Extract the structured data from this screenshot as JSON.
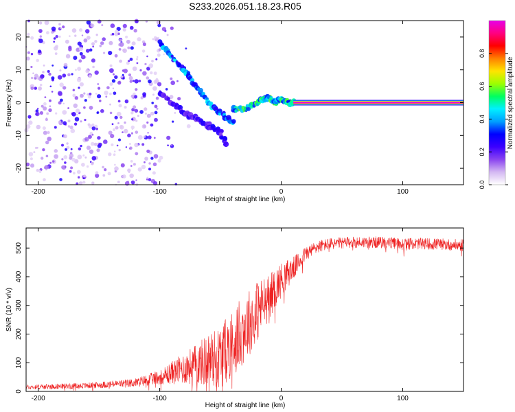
{
  "title": "S233.2026.051.18.23.R05",
  "chart_data": [
    {
      "type": "heatmap",
      "name": "spectrogram",
      "xlabel": "Height of straight line (km)",
      "ylabel": "Frequency (Hz)",
      "xlim": [
        -210,
        150
      ],
      "ylim": [
        -25,
        25
      ],
      "x_ticks": [
        -200,
        -100,
        0,
        100
      ],
      "y_ticks": [
        -20,
        -10,
        0,
        10,
        20
      ],
      "carrier": {
        "frequency_hz": 0,
        "x_from": 10,
        "x_to": 150,
        "amplitude": 1.0
      },
      "noise_region": {
        "x_from": -210,
        "x_to": -100,
        "amplitude_range": [
          0.05,
          0.3
        ]
      },
      "ridges": [
        {
          "name": "upper-branch",
          "points": [
            [
              -100,
              18
            ],
            [
              -90,
              14
            ],
            [
              -80,
              10
            ],
            [
              -70,
              5
            ],
            [
              -60,
              0
            ],
            [
              -50,
              -3
            ],
            [
              -40,
              -6
            ]
          ],
          "amplitude": 0.4
        },
        {
          "name": "lower-branch",
          "points": [
            [
              -100,
              3
            ],
            [
              -90,
              0
            ],
            [
              -80,
              -3
            ],
            [
              -70,
              -5
            ],
            [
              -60,
              -7
            ],
            [
              -50,
              -9
            ],
            [
              -45,
              -13
            ]
          ],
          "amplitude": 0.25
        },
        {
          "name": "convergence",
          "points": [
            [
              -40,
              -2
            ],
            [
              -30,
              -2
            ],
            [
              -20,
              0
            ],
            [
              -15,
              1
            ],
            [
              -10,
              1.5
            ],
            [
              -5,
              0
            ],
            [
              0,
              1
            ],
            [
              5,
              0
            ],
            [
              10,
              0
            ]
          ],
          "amplitude": 0.5
        }
      ]
    },
    {
      "type": "colorbar",
      "name": "amplitude-colorbar",
      "label": "Normalized spectral amplitude",
      "range": [
        0,
        1
      ],
      "ticks": [
        "0.0",
        "0.2",
        "0.4",
        "0.6",
        "0.8"
      ],
      "colors": [
        "#ffffff",
        "#d4b8f2",
        "#8a44f0",
        "#3b00ff",
        "#0000ff",
        "#00a0ff",
        "#00f0ff",
        "#00ff60",
        "#9cff00",
        "#ffe400",
        "#ff8000",
        "#ff0000",
        "#ff0080",
        "#e800e8"
      ]
    },
    {
      "type": "line",
      "name": "snr",
      "xlabel": "Height of straight line (km)",
      "ylabel": "SNR (10 * v/v)",
      "xlim": [
        -210,
        150
      ],
      "ylim": [
        0,
        570
      ],
      "x_ticks": [
        -200,
        -100,
        0,
        100
      ],
      "y_ticks": [
        0,
        100,
        200,
        300,
        400,
        500
      ],
      "series": [
        {
          "name": "SNR",
          "color": "#ee2222",
          "envelope": {
            "x": [
              -210,
              -160,
              -140,
              -120,
              -100,
              -90,
              -80,
              -70,
              -60,
              -50,
              -40,
              -30,
              -20,
              -10,
              0,
              10,
              20,
              30,
              40,
              60,
              80,
              100,
              120,
              150
            ],
            "mean": [
              15,
              20,
              25,
              30,
              50,
              65,
              80,
              95,
              110,
              120,
              170,
              220,
              280,
              330,
              390,
              430,
              480,
              505,
              515,
              520,
              520,
              515,
              515,
              510
            ],
            "spread": [
              8,
              10,
              12,
              15,
              25,
              40,
              55,
              70,
              95,
              110,
              120,
              120,
              110,
              80,
              60,
              40,
              25,
              22,
              20,
              20,
              20,
              20,
              20,
              20
            ]
          }
        }
      ]
    }
  ]
}
